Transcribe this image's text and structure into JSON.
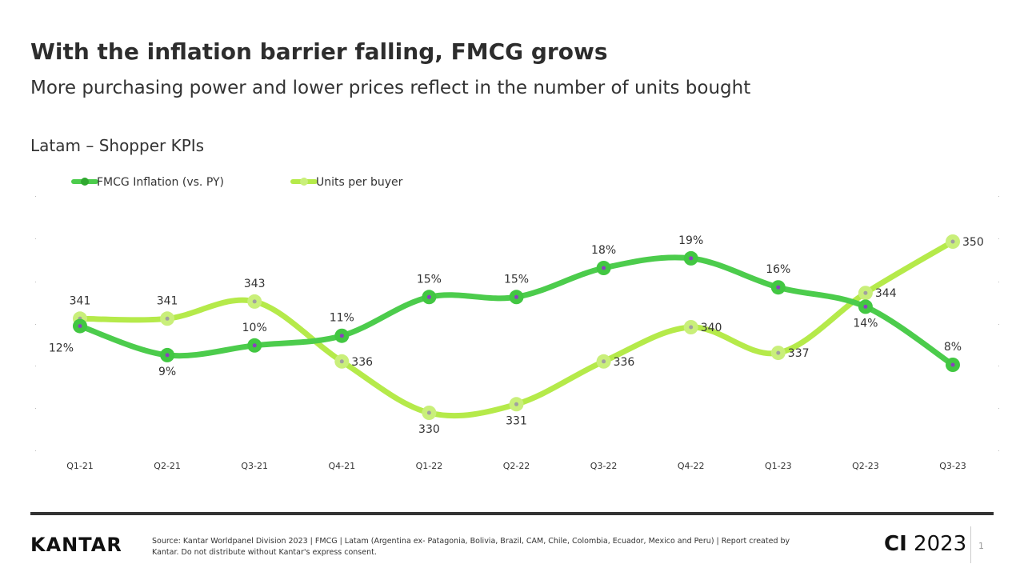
{
  "title": "With the inflation barrier falling, FMCG grows",
  "subtitle": "More purchasing power and lower prices reflect in the number of units bought",
  "chart_title": "Latam – Shopper KPIs",
  "footer": {
    "logo": "KANTAR",
    "source": "Source: Kantar Worldpanel Division 2023 | FMCG | Latam (Argentina ex- Patagonia, Bolivia, Brazil, CAM, Chile, Colombia, Ecuador, Mexico and Peru) | Report created by Kantar. Do not distribute without Kantar's express consent.",
    "ci_bold": "CI",
    "ci_year": "2023",
    "page": "1"
  },
  "chart_data": {
    "type": "line",
    "categories": [
      "Q1-21",
      "Q2-21",
      "Q3-21",
      "Q4-21",
      "Q1-22",
      "Q2-22",
      "Q3-22",
      "Q4-22",
      "Q1-23",
      "Q2-23",
      "Q3-23"
    ],
    "legend_placement": "top-left",
    "grid": false,
    "series": [
      {
        "name": "FMCG Inflation (vs. PY)",
        "values": [
          12,
          9,
          10,
          11,
          15,
          15,
          18,
          19,
          16,
          14,
          8
        ],
        "labels": [
          "12%",
          "9%",
          "10%",
          "11%",
          "15%",
          "15%",
          "18%",
          "19%",
          "16%",
          "14%",
          "8%"
        ],
        "color": "#4ccc4c",
        "axis": "left"
      },
      {
        "name": "Units per buyer",
        "values": [
          341,
          341,
          343,
          336,
          330,
          331,
          336,
          340,
          337,
          344,
          350
        ],
        "labels": [
          "341",
          "341",
          "343",
          "336",
          "330",
          "331",
          "336",
          "340",
          "337",
          "344",
          "350"
        ],
        "color": "#b5ea4a",
        "axis": "right"
      }
    ]
  }
}
